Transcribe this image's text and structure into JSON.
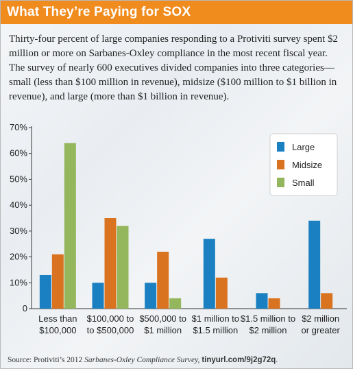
{
  "header": {
    "title": "What They’re Paying for SOX"
  },
  "intro": "Thirty-four percent of large companies responding to a Protiviti survey spent $2 million or more on Sarbanes-Oxley compliance in the most recent fiscal year. The survey of nearly 600 executives divided companies into three categories—small (less than $100 million in revenue), midsize ($100 million to $1 billion in revenue), and large (more than $1 billion in revenue).",
  "source": {
    "prefix": "Source: Protiviti’s 2012 ",
    "publication": "Sarbanes-Oxley Compliance Survey,",
    "url": "tinyurl.com/9j2g72q",
    "suffix": "."
  },
  "colors": {
    "title_bar": "#f08c1e",
    "large": "#1a80c2",
    "midsize": "#d9731f",
    "small": "#94b65c"
  },
  "chart_data": {
    "type": "bar",
    "categories": [
      [
        "Less than",
        "$100,000"
      ],
      [
        "$100,000 to",
        "to $500,000"
      ],
      [
        "$500,000 to",
        "$1 million"
      ],
      [
        "$1 million to",
        "$1.5 million"
      ],
      [
        "$1.5 million to",
        "$2 million"
      ],
      [
        "$2 million",
        "or greater"
      ]
    ],
    "series": [
      {
        "name": "Large",
        "color": "#1a80c2",
        "values": [
          13,
          10,
          10,
          27,
          6,
          34
        ]
      },
      {
        "name": "Midsize",
        "color": "#d9731f",
        "values": [
          21,
          35,
          22,
          12,
          4,
          6
        ]
      },
      {
        "name": "Small",
        "color": "#94b65c",
        "values": [
          64,
          32,
          4,
          null,
          null,
          null
        ]
      }
    ],
    "ylim": [
      0,
      70
    ],
    "yticks": [
      "0",
      "10%",
      "20%",
      "30%",
      "40%",
      "50%",
      "60%",
      "70%"
    ],
    "legend_position": "top-right",
    "grid": false
  }
}
